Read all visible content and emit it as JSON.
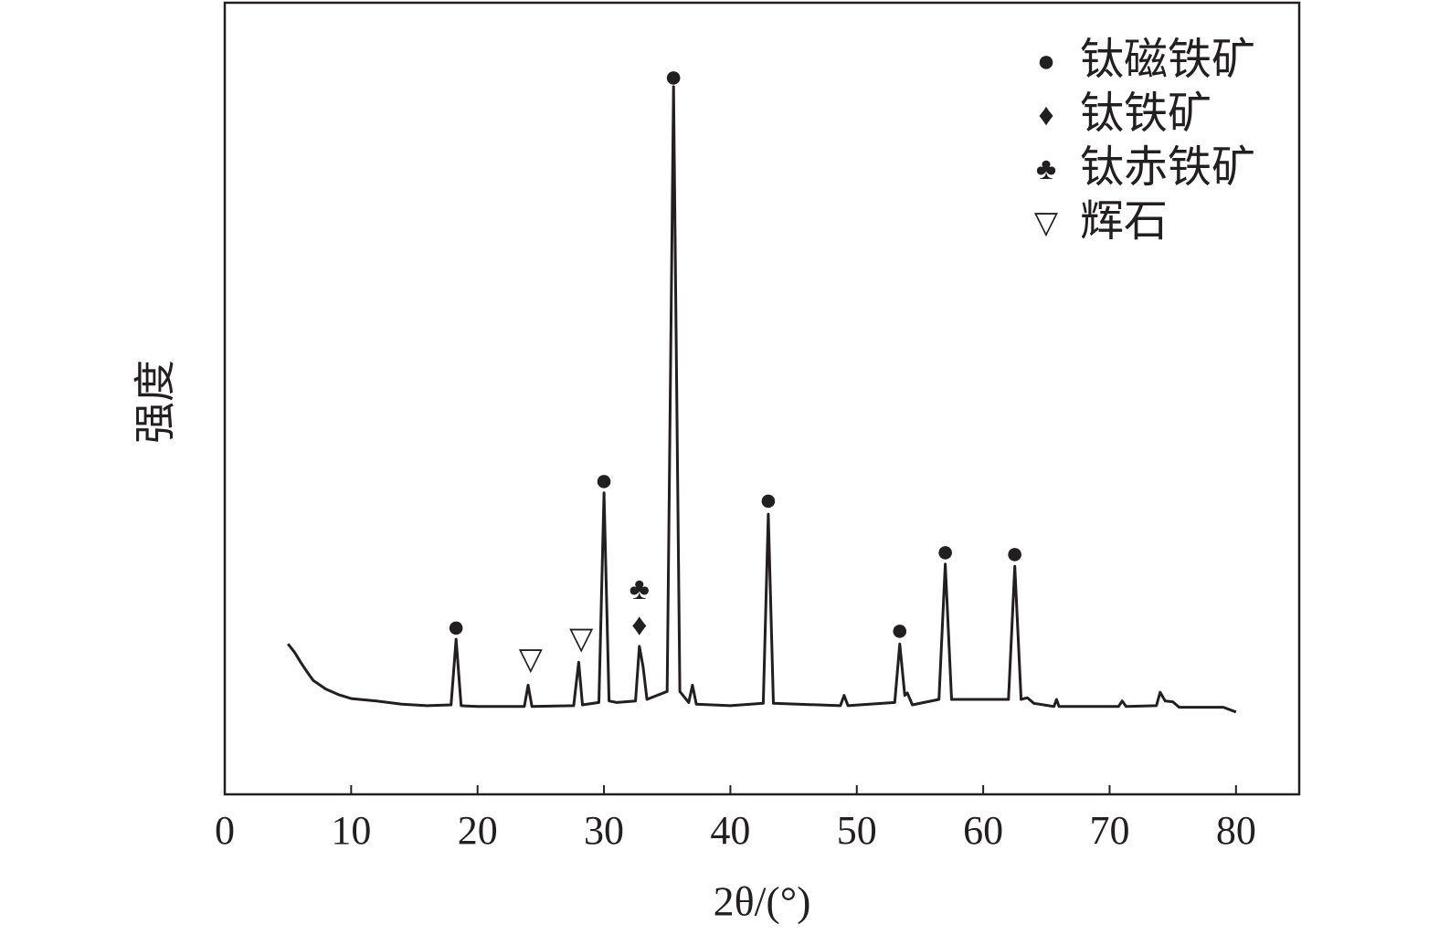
{
  "chart_data": {
    "type": "line",
    "x_label": "2θ/(°)",
    "y_label": "强度",
    "xlim": [
      0,
      85
    ],
    "xticks": [
      0,
      10,
      20,
      30,
      40,
      50,
      60,
      70,
      80
    ],
    "ylim": [
      0,
      100
    ],
    "color": "#231f20",
    "x": [
      5,
      5.5,
      6,
      6.5,
      7,
      8,
      9,
      10,
      12,
      14,
      16,
      17.9,
      18.3,
      18.7,
      20,
      23.7,
      24,
      24.3,
      27.6,
      28,
      28.3,
      29.6,
      30,
      30.4,
      31,
      32.5,
      32.8,
      33.1,
      33.4,
      35,
      35.5,
      36,
      36.7,
      37,
      37.3,
      40,
      42.6,
      43,
      43.4,
      48.7,
      49,
      49.3,
      53,
      53.4,
      53.8,
      54,
      54.4,
      56.5,
      57,
      57.5,
      62,
      62.5,
      63,
      63.5,
      64,
      65.6,
      65.8,
      66,
      70.7,
      71,
      71.3,
      73.7,
      74,
      74.4,
      75,
      75.5,
      79,
      80
    ],
    "values": [
      19.0,
      18.0,
      16.7,
      15.5,
      14.4,
      13.3,
      12.6,
      12.1,
      11.8,
      11.4,
      11.2,
      11.3,
      19.6,
      11.2,
      11.1,
      11.1,
      13.8,
      11.1,
      11.2,
      16.7,
      11.3,
      11.6,
      38.1,
      11.8,
      11.6,
      11.8,
      18.7,
      16.1,
      12.0,
      13.0,
      89.4,
      13.0,
      11.6,
      13.8,
      11.4,
      11.2,
      11.5,
      35.4,
      11.5,
      11.2,
      12.5,
      11.2,
      11.6,
      19.0,
      12.5,
      12.8,
      11.3,
      12.0,
      29.1,
      12.0,
      12.0,
      28.8,
      12.0,
      12.2,
      11.5,
      11.1,
      12.0,
      11.1,
      11.1,
      11.8,
      11.1,
      11.2,
      12.9,
      11.8,
      11.7,
      11.0,
      11.0,
      10.4
    ],
    "markers": [
      {
        "name": "钛磁铁矿",
        "symbol": "●",
        "x": [
          18.3,
          30.0,
          35.5,
          43.0,
          53.4,
          57.0,
          62.5
        ],
        "y": [
          20.8,
          39.3,
          90.3,
          36.8,
          20.4,
          30.3,
          30.1
        ]
      },
      {
        "name": "钛铁矿",
        "symbol": "♦",
        "x": [
          32.8
        ],
        "y": [
          21.0
        ]
      },
      {
        "name": "钛赤铁矿",
        "symbol": "♣",
        "x": [
          32.8
        ],
        "y": [
          25.6
        ]
      },
      {
        "name": "辉石",
        "symbol": "▽",
        "x": [
          24.2,
          28.2
        ],
        "y": [
          16.7,
          19.3
        ]
      }
    ]
  }
}
